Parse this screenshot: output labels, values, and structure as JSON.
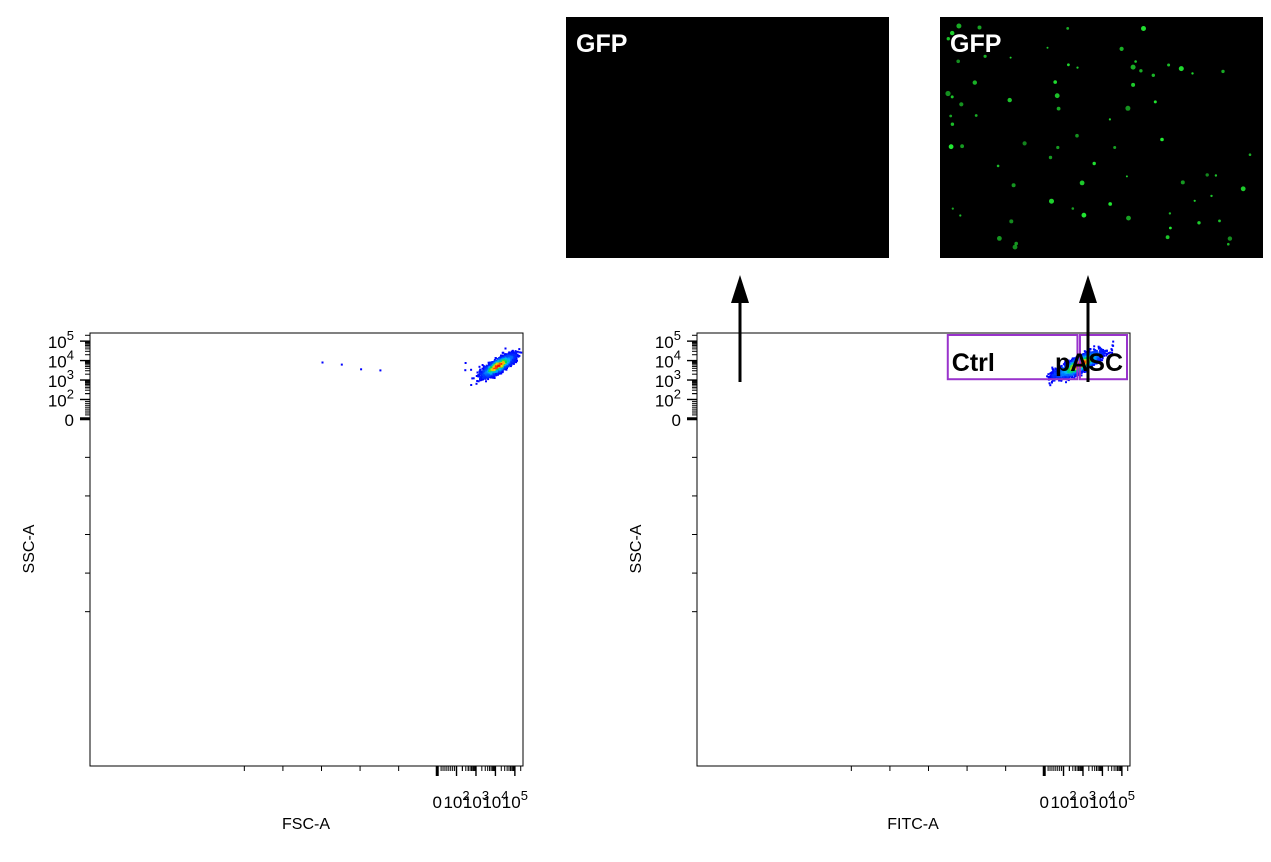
{
  "micrographs": [
    {
      "label": "GFP",
      "signal": "none",
      "background": "#000000"
    },
    {
      "label": "GFP",
      "signal": "sparse green fluorescent cells",
      "background": "#000000",
      "spot_color": "#22ee33"
    }
  ],
  "chart_data": [
    {
      "type": "scatter",
      "style": "density dot plot",
      "xlabel": "FSC-A",
      "ylabel": "SSC-A",
      "x_scale": "biexponential",
      "y_scale": "biexponential",
      "x_ticks": [
        0,
        100,
        1000,
        10000,
        100000
      ],
      "y_ticks": [
        0,
        100,
        1000,
        10000,
        100000
      ],
      "population": {
        "center": [
          12000,
          6000
        ],
        "x_range": [
          2500,
          200000
        ],
        "y_range": [
          2500,
          200000
        ]
      },
      "outliers": [
        [
          -600,
          9000
        ],
        [
          -500,
          7000
        ],
        [
          -400,
          4000
        ],
        [
          -300,
          3500
        ],
        [
          260,
          8500
        ],
        [
          250,
          3600
        ],
        [
          500,
          3800
        ]
      ]
    },
    {
      "type": "scatter",
      "style": "density dot plot",
      "xlabel": "FITC-A",
      "ylabel": "SSC-A",
      "x_scale": "biexponential",
      "y_scale": "biexponential",
      "x_ticks": [
        0,
        100,
        1000,
        10000,
        100000
      ],
      "y_ticks": [
        0,
        100,
        1000,
        10000,
        100000
      ],
      "population": {
        "center": [
          600,
          7000
        ],
        "x_range": [
          50,
          50000
        ],
        "y_range": [
          2000,
          200000
        ]
      },
      "gates": [
        {
          "name": "Ctrl",
          "x_range": [
            -500,
            520
          ],
          "y_range": [
            1100,
            220000
          ]
        },
        {
          "name": "pASC",
          "x_range": [
            700,
            220000
          ],
          "y_range": [
            1100,
            220000
          ]
        }
      ]
    }
  ],
  "colors": {
    "gate": "#9933cc",
    "density_low": "#0000ff",
    "density_high": "#ff0000",
    "arrow": "#000000"
  },
  "tick_text": {
    "zero": "0",
    "base": "10",
    "exps": [
      "2",
      "3",
      "4",
      "5"
    ]
  }
}
